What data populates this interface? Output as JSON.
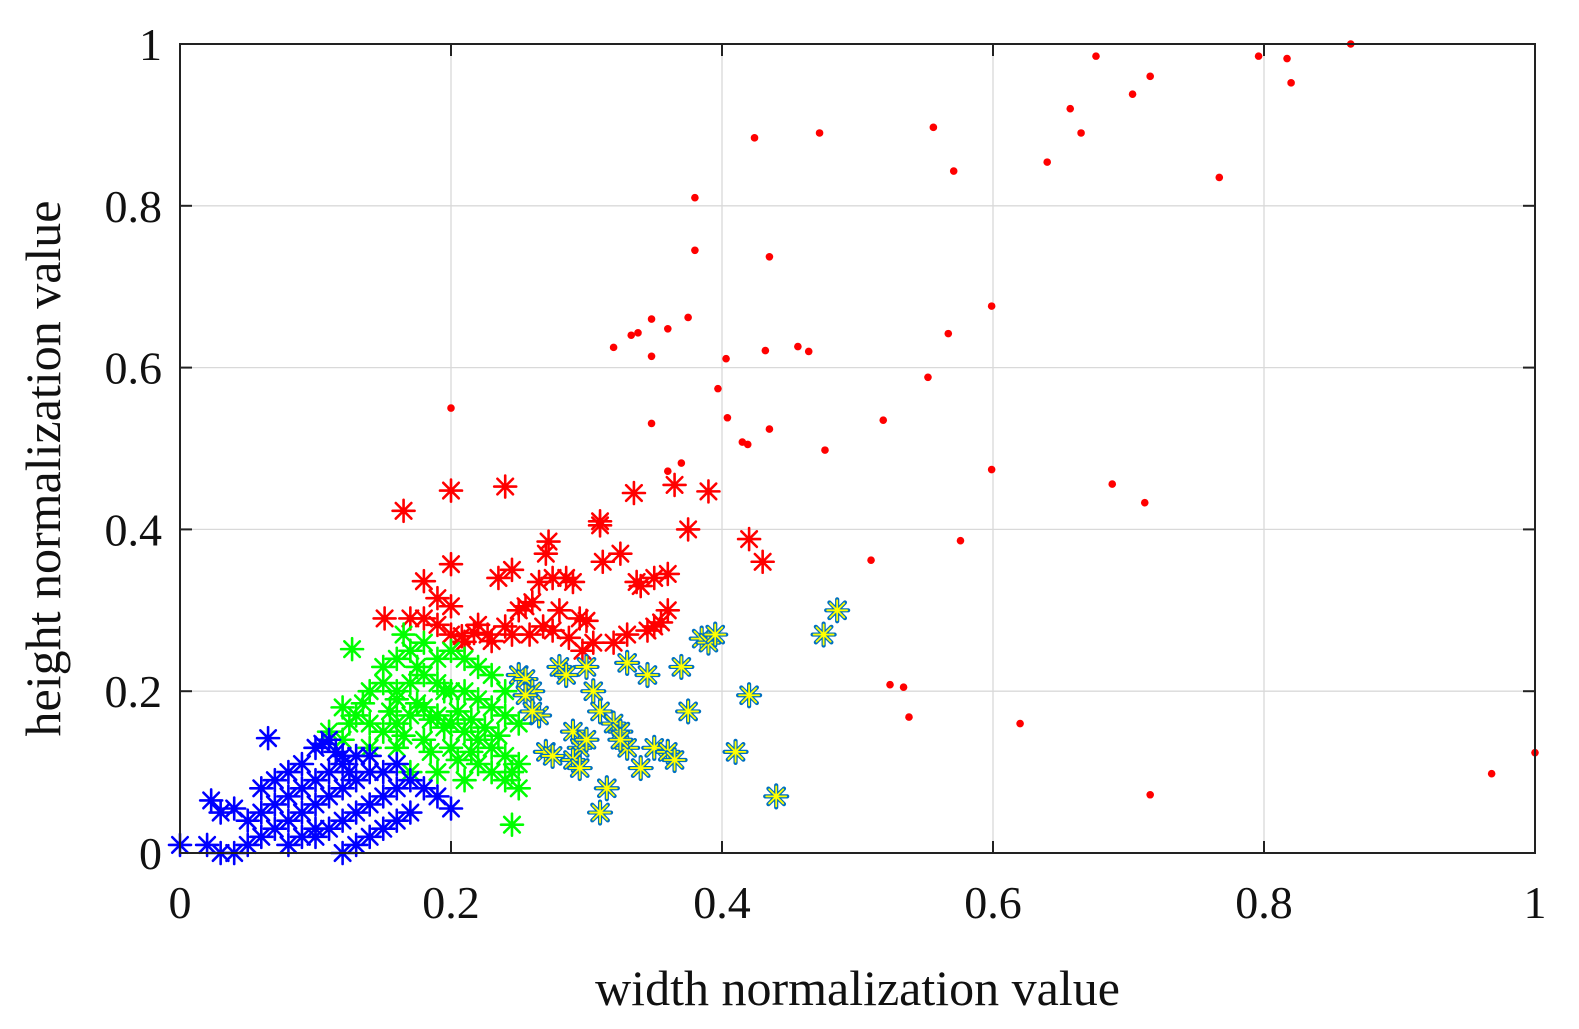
{
  "chart_data": {
    "type": "scatter",
    "title": "",
    "xlabel": "width normalization value",
    "ylabel": "height normalization value",
    "xlim": [
      0,
      1
    ],
    "ylim": [
      0,
      1
    ],
    "xticks": [
      "0",
      "0.2",
      "0.4",
      "0.6",
      "0.8",
      "1"
    ],
    "yticks": [
      "0",
      "0.2",
      "0.4",
      "0.6",
      "0.8",
      "1"
    ],
    "grid": true,
    "legend": "none",
    "series": [
      {
        "marker": "dot",
        "color": "#ff0000",
        "points": [
          [
            0.2,
            0.55
          ],
          [
            0.32,
            0.625
          ],
          [
            0.333,
            0.64
          ],
          [
            0.338,
            0.643
          ],
          [
            0.348,
            0.66
          ],
          [
            0.348,
            0.614
          ],
          [
            0.36,
            0.648
          ],
          [
            0.375,
            0.662
          ],
          [
            0.38,
            0.81
          ],
          [
            0.38,
            0.745
          ],
          [
            0.348,
            0.531
          ],
          [
            0.36,
            0.472
          ],
          [
            0.37,
            0.482
          ],
          [
            0.397,
            0.574
          ],
          [
            0.403,
            0.611
          ],
          [
            0.404,
            0.538
          ],
          [
            0.415,
            0.508
          ],
          [
            0.419,
            0.505
          ],
          [
            0.424,
            0.884
          ],
          [
            0.432,
            0.621
          ],
          [
            0.435,
            0.737
          ],
          [
            0.435,
            0.524
          ],
          [
            0.456,
            0.626
          ],
          [
            0.464,
            0.62
          ],
          [
            0.472,
            0.89
          ],
          [
            0.476,
            0.498
          ],
          [
            0.51,
            0.362
          ],
          [
            0.519,
            0.535
          ],
          [
            0.524,
            0.208
          ],
          [
            0.534,
            0.205
          ],
          [
            0.538,
            0.168
          ],
          [
            0.552,
            0.588
          ],
          [
            0.556,
            0.897
          ],
          [
            0.567,
            0.642
          ],
          [
            0.571,
            0.843
          ],
          [
            0.576,
            0.386
          ],
          [
            0.599,
            0.676
          ],
          [
            0.599,
            0.474
          ],
          [
            0.62,
            0.16
          ],
          [
            0.64,
            0.854
          ],
          [
            0.657,
            0.92
          ],
          [
            0.665,
            0.89
          ],
          [
            0.688,
            0.456
          ],
          [
            0.676,
            0.985
          ],
          [
            0.703,
            0.938
          ],
          [
            0.712,
            0.433
          ],
          [
            0.716,
            0.072
          ],
          [
            0.716,
            0.96
          ],
          [
            0.767,
            0.835
          ],
          [
            0.796,
            0.985
          ],
          [
            0.817,
            0.982
          ],
          [
            0.82,
            0.952
          ],
          [
            0.864,
            1.0
          ],
          [
            0.968,
            0.098
          ],
          [
            1.0,
            0.124
          ]
        ]
      },
      {
        "marker": "asterisk",
        "color": "#ff0000",
        "points": [
          [
            0.165,
            0.423
          ],
          [
            0.2,
            0.448
          ],
          [
            0.24,
            0.453
          ],
          [
            0.2,
            0.357
          ],
          [
            0.18,
            0.336
          ],
          [
            0.19,
            0.315
          ],
          [
            0.2,
            0.305
          ],
          [
            0.151,
            0.29
          ],
          [
            0.17,
            0.29
          ],
          [
            0.18,
            0.29
          ],
          [
            0.19,
            0.282
          ],
          [
            0.2,
            0.27
          ],
          [
            0.21,
            0.261
          ],
          [
            0.22,
            0.282
          ],
          [
            0.23,
            0.262
          ],
          [
            0.235,
            0.34
          ],
          [
            0.245,
            0.35
          ],
          [
            0.25,
            0.3
          ],
          [
            0.255,
            0.305
          ],
          [
            0.26,
            0.31
          ],
          [
            0.265,
            0.335
          ],
          [
            0.27,
            0.37
          ],
          [
            0.272,
            0.385
          ],
          [
            0.275,
            0.34
          ],
          [
            0.28,
            0.3
          ],
          [
            0.285,
            0.34
          ],
          [
            0.29,
            0.335
          ],
          [
            0.295,
            0.29
          ],
          [
            0.3,
            0.287
          ],
          [
            0.305,
            0.26
          ],
          [
            0.31,
            0.41
          ],
          [
            0.31,
            0.405
          ],
          [
            0.312,
            0.36
          ],
          [
            0.32,
            0.26
          ],
          [
            0.325,
            0.37
          ],
          [
            0.33,
            0.27
          ],
          [
            0.335,
            0.445
          ],
          [
            0.337,
            0.335
          ],
          [
            0.34,
            0.33
          ],
          [
            0.345,
            0.275
          ],
          [
            0.35,
            0.34
          ],
          [
            0.35,
            0.28
          ],
          [
            0.355,
            0.285
          ],
          [
            0.36,
            0.345
          ],
          [
            0.36,
            0.3
          ],
          [
            0.365,
            0.455
          ],
          [
            0.375,
            0.4
          ],
          [
            0.39,
            0.447
          ],
          [
            0.42,
            0.388
          ],
          [
            0.43,
            0.36
          ],
          [
            0.24,
            0.28
          ],
          [
            0.245,
            0.27
          ],
          [
            0.258,
            0.27
          ],
          [
            0.268,
            0.28
          ],
          [
            0.275,
            0.275
          ],
          [
            0.287,
            0.266
          ],
          [
            0.297,
            0.25
          ],
          [
            0.217,
            0.272
          ],
          [
            0.227,
            0.27
          ],
          [
            0.208,
            0.268
          ]
        ]
      },
      {
        "marker": "asterisk",
        "color": "#00ff00",
        "points": [
          [
            0.127,
            0.252
          ],
          [
            0.165,
            0.27
          ],
          [
            0.15,
            0.23
          ],
          [
            0.16,
            0.24
          ],
          [
            0.17,
            0.25
          ],
          [
            0.18,
            0.26
          ],
          [
            0.19,
            0.24
          ],
          [
            0.2,
            0.25
          ],
          [
            0.21,
            0.24
          ],
          [
            0.22,
            0.23
          ],
          [
            0.23,
            0.22
          ],
          [
            0.24,
            0.2
          ],
          [
            0.245,
            0.035
          ],
          [
            0.14,
            0.2
          ],
          [
            0.15,
            0.21
          ],
          [
            0.16,
            0.2
          ],
          [
            0.17,
            0.21
          ],
          [
            0.18,
            0.22
          ],
          [
            0.19,
            0.21
          ],
          [
            0.2,
            0.2
          ],
          [
            0.21,
            0.2
          ],
          [
            0.22,
            0.19
          ],
          [
            0.23,
            0.18
          ],
          [
            0.24,
            0.17
          ],
          [
            0.25,
            0.16
          ],
          [
            0.12,
            0.18
          ],
          [
            0.13,
            0.17
          ],
          [
            0.14,
            0.16
          ],
          [
            0.15,
            0.15
          ],
          [
            0.16,
            0.16
          ],
          [
            0.17,
            0.17
          ],
          [
            0.18,
            0.18
          ],
          [
            0.19,
            0.17
          ],
          [
            0.2,
            0.16
          ],
          [
            0.21,
            0.15
          ],
          [
            0.22,
            0.14
          ],
          [
            0.23,
            0.13
          ],
          [
            0.24,
            0.12
          ],
          [
            0.25,
            0.11
          ],
          [
            0.11,
            0.15
          ],
          [
            0.12,
            0.14
          ],
          [
            0.14,
            0.13
          ],
          [
            0.16,
            0.13
          ],
          [
            0.18,
            0.14
          ],
          [
            0.2,
            0.13
          ],
          [
            0.22,
            0.11
          ],
          [
            0.24,
            0.09
          ],
          [
            0.25,
            0.08
          ],
          [
            0.17,
            0.1
          ],
          [
            0.19,
            0.1
          ],
          [
            0.21,
            0.09
          ],
          [
            0.23,
            0.1
          ],
          [
            0.245,
            0.1
          ],
          [
            0.16,
            0.19
          ],
          [
            0.175,
            0.185
          ],
          [
            0.185,
            0.165
          ],
          [
            0.195,
            0.155
          ],
          [
            0.205,
            0.175
          ],
          [
            0.215,
            0.165
          ],
          [
            0.225,
            0.155
          ],
          [
            0.235,
            0.145
          ],
          [
            0.155,
            0.175
          ],
          [
            0.135,
            0.185
          ],
          [
            0.125,
            0.16
          ],
          [
            0.165,
            0.145
          ],
          [
            0.185,
            0.125
          ],
          [
            0.205,
            0.115
          ],
          [
            0.215,
            0.125
          ],
          [
            0.195,
            0.2
          ],
          [
            0.175,
            0.23
          ]
        ]
      },
      {
        "marker": "asterisk",
        "color": "#0000ff",
        "points": [
          [
            0.0,
            0.01
          ],
          [
            0.023,
            0.065
          ],
          [
            0.03,
            0.05
          ],
          [
            0.04,
            0.055
          ],
          [
            0.065,
            0.142
          ],
          [
            0.02,
            0.01
          ],
          [
            0.03,
            0.0
          ],
          [
            0.04,
            0.0
          ],
          [
            0.05,
            0.01
          ],
          [
            0.06,
            0.02
          ],
          [
            0.07,
            0.03
          ],
          [
            0.08,
            0.04
          ],
          [
            0.09,
            0.05
          ],
          [
            0.1,
            0.06
          ],
          [
            0.11,
            0.07
          ],
          [
            0.12,
            0.08
          ],
          [
            0.13,
            0.09
          ],
          [
            0.14,
            0.1
          ],
          [
            0.05,
            0.04
          ],
          [
            0.06,
            0.05
          ],
          [
            0.07,
            0.06
          ],
          [
            0.08,
            0.07
          ],
          [
            0.09,
            0.08
          ],
          [
            0.1,
            0.09
          ],
          [
            0.11,
            0.1
          ],
          [
            0.12,
            0.11
          ],
          [
            0.13,
            0.12
          ],
          [
            0.1,
            0.13
          ],
          [
            0.11,
            0.14
          ],
          [
            0.12,
            0.12
          ],
          [
            0.08,
            0.1
          ],
          [
            0.09,
            0.11
          ],
          [
            0.06,
            0.08
          ],
          [
            0.07,
            0.09
          ],
          [
            0.1,
            0.02
          ],
          [
            0.11,
            0.03
          ],
          [
            0.12,
            0.04
          ],
          [
            0.13,
            0.05
          ],
          [
            0.14,
            0.06
          ],
          [
            0.15,
            0.07
          ],
          [
            0.16,
            0.08
          ],
          [
            0.17,
            0.09
          ],
          [
            0.18,
            0.08
          ],
          [
            0.19,
            0.07
          ],
          [
            0.2,
            0.055
          ],
          [
            0.15,
            0.03
          ],
          [
            0.16,
            0.04
          ],
          [
            0.17,
            0.05
          ],
          [
            0.13,
            0.01
          ],
          [
            0.14,
            0.02
          ],
          [
            0.08,
            0.01
          ],
          [
            0.09,
            0.02
          ],
          [
            0.1,
            0.03
          ],
          [
            0.12,
            0.0
          ],
          [
            0.15,
            0.1
          ],
          [
            0.16,
            0.11
          ],
          [
            0.14,
            0.12
          ],
          [
            0.105,
            0.135
          ],
          [
            0.115,
            0.125
          ],
          [
            0.125,
            0.1
          ]
        ]
      },
      {
        "marker": "asterisk-hollow",
        "color": "#ffff00",
        "edge_color": "#0070c0",
        "points": [
          [
            0.25,
            0.22
          ],
          [
            0.255,
            0.215
          ],
          [
            0.26,
            0.2
          ],
          [
            0.265,
            0.17
          ],
          [
            0.27,
            0.125
          ],
          [
            0.275,
            0.12
          ],
          [
            0.28,
            0.23
          ],
          [
            0.285,
            0.22
          ],
          [
            0.29,
            0.15
          ],
          [
            0.295,
            0.13
          ],
          [
            0.29,
            0.115
          ],
          [
            0.3,
            0.23
          ],
          [
            0.305,
            0.2
          ],
          [
            0.31,
            0.175
          ],
          [
            0.315,
            0.08
          ],
          [
            0.31,
            0.05
          ],
          [
            0.32,
            0.16
          ],
          [
            0.325,
            0.15
          ],
          [
            0.33,
            0.235
          ],
          [
            0.33,
            0.13
          ],
          [
            0.34,
            0.105
          ],
          [
            0.345,
            0.22
          ],
          [
            0.35,
            0.13
          ],
          [
            0.36,
            0.125
          ],
          [
            0.365,
            0.115
          ],
          [
            0.37,
            0.23
          ],
          [
            0.375,
            0.175
          ],
          [
            0.385,
            0.265
          ],
          [
            0.39,
            0.26
          ],
          [
            0.395,
            0.27
          ],
          [
            0.41,
            0.125
          ],
          [
            0.42,
            0.195
          ],
          [
            0.44,
            0.07
          ],
          [
            0.475,
            0.27
          ],
          [
            0.485,
            0.3
          ],
          [
            0.295,
            0.105
          ],
          [
            0.3,
            0.14
          ],
          [
            0.325,
            0.14
          ],
          [
            0.255,
            0.195
          ],
          [
            0.26,
            0.175
          ]
        ]
      }
    ]
  }
}
